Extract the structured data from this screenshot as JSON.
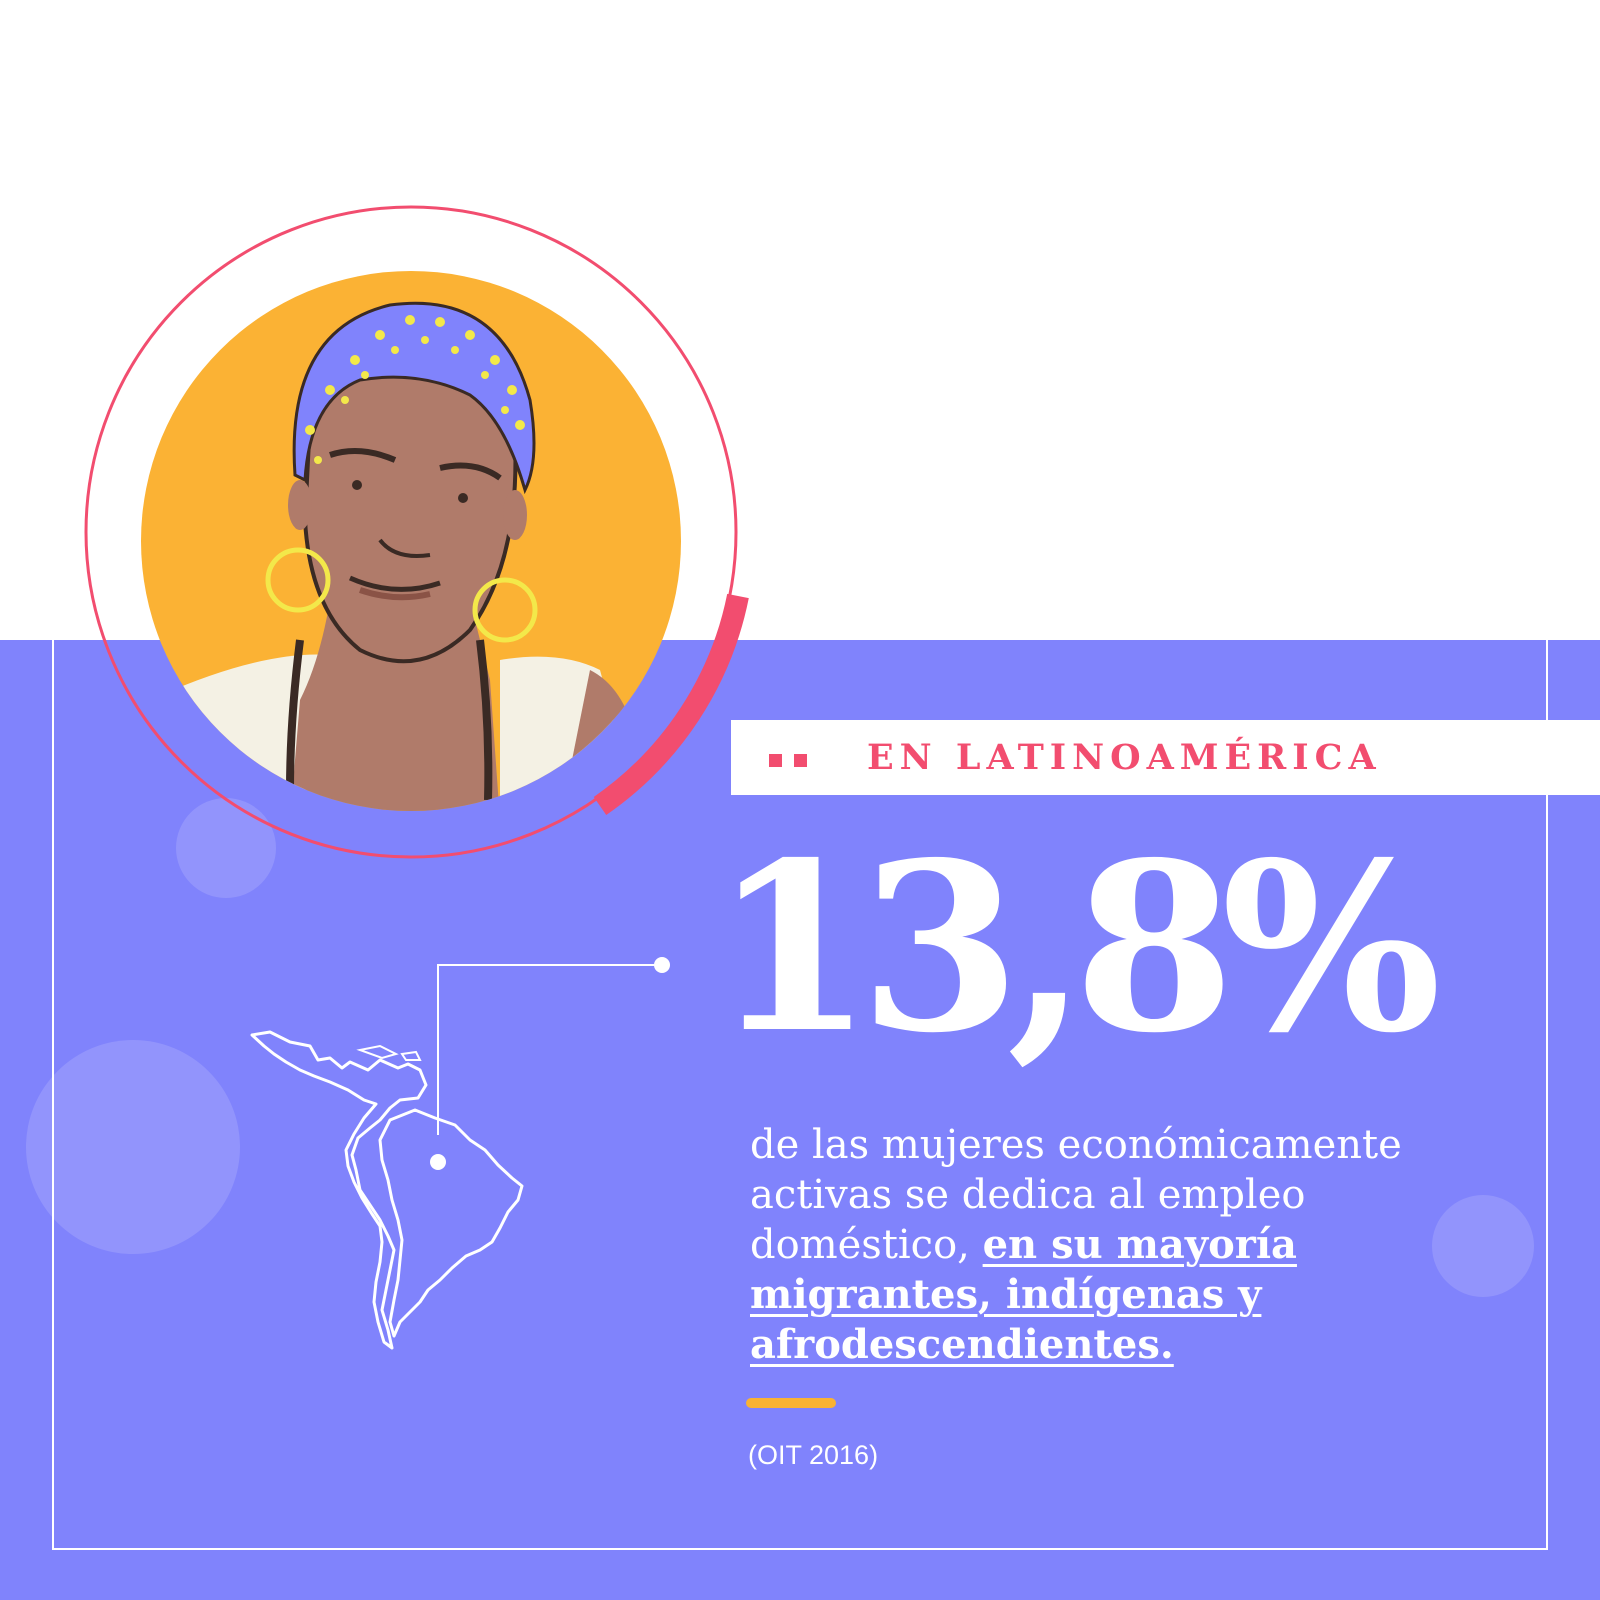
{
  "colors": {
    "background": "#ffffff",
    "panel": "#8083fc",
    "accent_pink": "#f24d6f",
    "accent_yellow": "#f9b233",
    "portrait_background": "#fbb234"
  },
  "icons": {
    "portrait": "woman-portrait-illustration",
    "map": "latin-america-map-icon"
  },
  "section_title": "EN LATINOAMÉRICA",
  "statistic": {
    "value": "13,8%"
  },
  "description": {
    "text_part1": "de las mujeres económicamente activas se dedica al empleo doméstico, ",
    "text_highlight": "en su mayoría migrantes, indígenas y afrodescendientes."
  },
  "source": "(OIT 2016)"
}
